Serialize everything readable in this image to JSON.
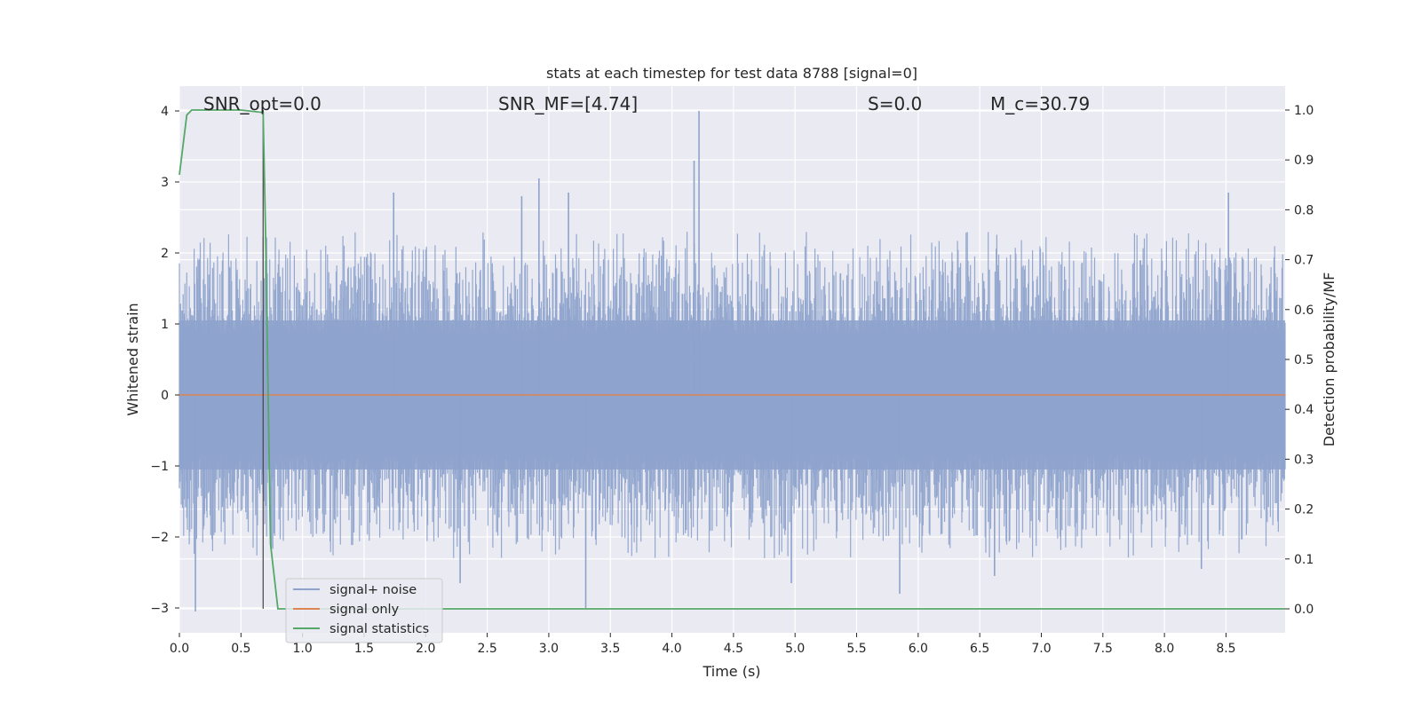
{
  "chart_data": {
    "type": "line",
    "title": "stats at each timestep for test data 8788 [signal=0]",
    "xlabel": "Time (s)",
    "ylabel_left": "Whitened strain",
    "ylabel_right": "Detection probability/MF",
    "xlim": [
      0.0,
      8.98
    ],
    "ylim_left": [
      -3.35,
      4.35
    ],
    "ylim_right": [
      -0.048,
      1.048
    ],
    "x_ticks": [
      "0.0",
      "0.5",
      "1.0",
      "1.5",
      "2.0",
      "2.5",
      "3.0",
      "3.5",
      "4.0",
      "4.5",
      "5.0",
      "5.5",
      "6.0",
      "6.5",
      "7.0",
      "7.5",
      "8.0",
      "8.5"
    ],
    "y_ticks_left": [
      "−3",
      "−2",
      "−1",
      "0",
      "1",
      "2",
      "3",
      "4"
    ],
    "y_ticks_right": [
      "0.0",
      "0.1",
      "0.2",
      "0.3",
      "0.4",
      "0.5",
      "0.6",
      "0.7",
      "0.8",
      "0.9",
      "1.0"
    ],
    "grid": true,
    "legend_placement": "lower-left",
    "annotations": [
      {
        "id": "snr_opt",
        "text": "SNR_opt=0.0"
      },
      {
        "id": "snr_mf",
        "text": "SNR_MF=[4.74]"
      },
      {
        "id": "s",
        "text": "S=0.0"
      },
      {
        "id": "mc",
        "text": "M_c=30.79"
      }
    ],
    "vertical_marker_x": 0.68,
    "series": [
      {
        "name": "signal+ noise",
        "color": "#8ea3cc",
        "axis": "left",
        "description": "whitened strain noise, roughly uniform amplitude between about -2.5 and +2.5 with sparse spikes",
        "spikes": [
          {
            "x": 4.22,
            "y": 4.0
          },
          {
            "x": 4.18,
            "y": 3.3
          },
          {
            "x": 2.92,
            "y": 3.05
          },
          {
            "x": 3.16,
            "y": 2.85
          },
          {
            "x": 1.74,
            "y": 2.85
          },
          {
            "x": 8.52,
            "y": 2.85
          },
          {
            "x": 2.78,
            "y": 2.8
          },
          {
            "x": 0.13,
            "y": -3.05
          },
          {
            "x": 3.3,
            "y": -3.0
          },
          {
            "x": 5.85,
            "y": -2.8
          },
          {
            "x": 2.28,
            "y": -2.65
          },
          {
            "x": 4.97,
            "y": -2.65
          },
          {
            "x": 6.62,
            "y": -2.55
          },
          {
            "x": 8.3,
            "y": -2.45
          }
        ]
      },
      {
        "name": "signal only",
        "color": "#dd8452",
        "axis": "left",
        "x": [
          0.0,
          8.98
        ],
        "y": [
          0.0,
          0.0
        ]
      },
      {
        "name": "signal statistics",
        "color": "#55a868",
        "axis": "right",
        "x": [
          0.0,
          0.06,
          0.1,
          0.15,
          0.3,
          0.5,
          0.68,
          0.7,
          0.74,
          0.8,
          1.0,
          2.0,
          4.0,
          6.0,
          8.0,
          8.98
        ],
        "y": [
          0.87,
          0.99,
          1.0,
          1.0,
          1.0,
          1.0,
          0.995,
          0.75,
          0.13,
          0.0,
          0.0,
          0.0,
          0.0,
          0.0,
          0.0,
          0.0
        ]
      }
    ]
  }
}
